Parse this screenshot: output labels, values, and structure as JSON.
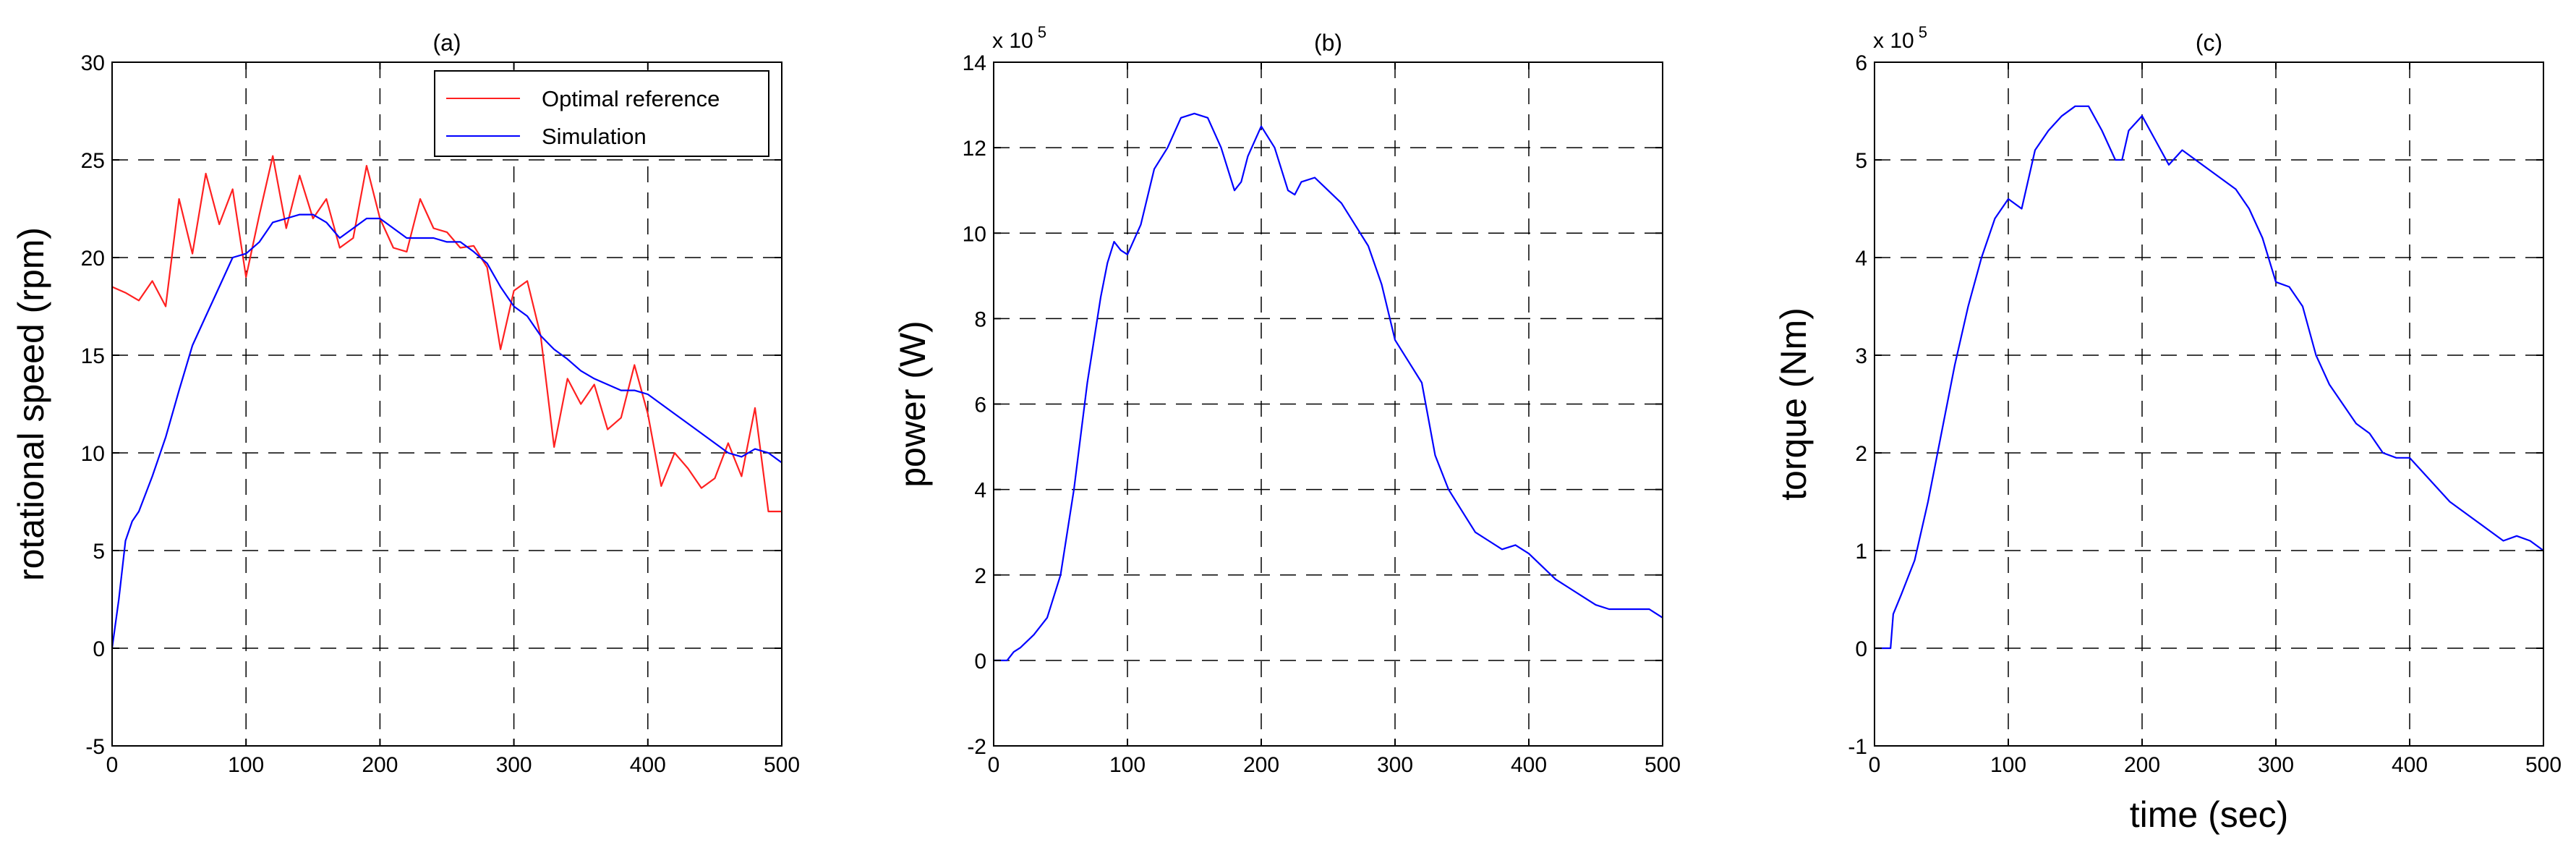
{
  "colors": {
    "reference": "#ff2020",
    "simulation": "#0000ff",
    "grid": "#000000",
    "axes": "#000000"
  },
  "chart_data": [
    {
      "type": "line",
      "title": "(a)",
      "xlabel": "",
      "ylabel": "rotational speed (rpm)",
      "multiplier": "",
      "xlim": [
        0,
        500
      ],
      "ylim": [
        -5,
        30
      ],
      "xticks": [
        0,
        100,
        200,
        300,
        400,
        500
      ],
      "yticks": [
        -5,
        0,
        5,
        10,
        15,
        20,
        25,
        30
      ],
      "grid": true,
      "legend": "top-right",
      "series": [
        {
          "name": "Optimal reference",
          "color": "#ff2020",
          "x": [
            0,
            10,
            20,
            30,
            40,
            50,
            60,
            70,
            80,
            90,
            100,
            110,
            120,
            130,
            140,
            150,
            160,
            170,
            180,
            190,
            200,
            210,
            220,
            230,
            240,
            250,
            260,
            270,
            280,
            290,
            300,
            310,
            320,
            330,
            340,
            350,
            360,
            370,
            380,
            390,
            400,
            410,
            420,
            430,
            440,
            450,
            460,
            470,
            480,
            490,
            500
          ],
          "y": [
            18.5,
            18.2,
            17.8,
            18.8,
            17.5,
            23.0,
            20.2,
            24.3,
            21.7,
            23.5,
            19.0,
            22.2,
            25.2,
            21.5,
            24.2,
            22.0,
            23.0,
            20.5,
            21.0,
            24.7,
            22.0,
            20.5,
            20.3,
            23.0,
            21.5,
            21.3,
            20.5,
            20.6,
            19.5,
            15.3,
            18.3,
            18.8,
            16.0,
            10.3,
            13.8,
            12.5,
            13.5,
            11.2,
            11.8,
            14.5,
            12.0,
            8.3,
            10.0,
            9.2,
            8.2,
            8.7,
            10.5,
            8.8,
            12.3,
            7.0,
            7.0
          ]
        },
        {
          "name": "Simulation",
          "color": "#0000ff",
          "x": [
            0,
            5,
            10,
            15,
            20,
            30,
            40,
            50,
            60,
            70,
            80,
            90,
            100,
            110,
            120,
            130,
            140,
            150,
            160,
            170,
            180,
            190,
            200,
            210,
            220,
            230,
            240,
            250,
            260,
            270,
            280,
            290,
            300,
            310,
            320,
            330,
            340,
            350,
            360,
            370,
            380,
            390,
            400,
            410,
            420,
            430,
            440,
            450,
            460,
            470,
            480,
            490,
            500
          ],
          "y": [
            0.0,
            2.5,
            5.5,
            6.5,
            7.0,
            8.8,
            10.8,
            13.2,
            15.5,
            17.0,
            18.5,
            20.0,
            20.2,
            20.8,
            21.8,
            22.0,
            22.2,
            22.2,
            21.8,
            21.0,
            21.5,
            22.0,
            22.0,
            21.5,
            21.0,
            21.0,
            21.0,
            20.8,
            20.8,
            20.3,
            19.7,
            18.5,
            17.5,
            17.0,
            16.0,
            15.3,
            14.8,
            14.2,
            13.8,
            13.5,
            13.2,
            13.2,
            13.0,
            12.5,
            12.0,
            11.5,
            11.0,
            10.5,
            10.0,
            9.8,
            10.2,
            10.0,
            9.5
          ]
        }
      ]
    },
    {
      "type": "line",
      "title": "(b)",
      "xlabel": "",
      "ylabel": "power (W)",
      "multiplier": "x 10",
      "multiplier_exp": "5",
      "xlim": [
        0,
        500
      ],
      "ylim": [
        -2,
        14
      ],
      "xticks": [
        0,
        100,
        200,
        300,
        400,
        500
      ],
      "yticks": [
        -2,
        0,
        2,
        4,
        6,
        8,
        10,
        12,
        14
      ],
      "grid": true,
      "series": [
        {
          "color": "#0000ff",
          "x": [
            0,
            10,
            15,
            20,
            30,
            40,
            50,
            60,
            70,
            80,
            85,
            90,
            95,
            100,
            110,
            120,
            130,
            140,
            150,
            160,
            170,
            180,
            185,
            190,
            200,
            210,
            220,
            225,
            230,
            240,
            250,
            260,
            270,
            280,
            290,
            300,
            310,
            320,
            330,
            340,
            350,
            360,
            370,
            380,
            390,
            400,
            410,
            420,
            430,
            440,
            450,
            460,
            470,
            480,
            490,
            500
          ],
          "y": [
            0.0,
            0.0,
            0.2,
            0.3,
            0.6,
            1.0,
            2.0,
            4.0,
            6.5,
            8.5,
            9.3,
            9.8,
            9.6,
            9.5,
            10.2,
            11.5,
            12.0,
            12.7,
            12.8,
            12.7,
            12.0,
            11.0,
            11.2,
            11.8,
            12.5,
            12.0,
            11.0,
            10.9,
            11.2,
            11.3,
            11.0,
            10.7,
            10.2,
            9.7,
            8.8,
            7.5,
            7.0,
            6.5,
            4.8,
            4.0,
            3.5,
            3.0,
            2.8,
            2.6,
            2.7,
            2.5,
            2.2,
            1.9,
            1.7,
            1.5,
            1.3,
            1.2,
            1.2,
            1.2,
            1.2,
            1.0
          ]
        }
      ]
    },
    {
      "type": "line",
      "title": "(c)",
      "xlabel": "time (sec)",
      "ylabel": "torque (Nm)",
      "multiplier": "x 10",
      "multiplier_exp": "5",
      "xlim": [
        0,
        500
      ],
      "ylim": [
        -1,
        6
      ],
      "xticks": [
        0,
        100,
        200,
        300,
        400,
        500
      ],
      "yticks": [
        -1,
        0,
        1,
        2,
        3,
        4,
        5,
        6
      ],
      "grid": true,
      "series": [
        {
          "color": "#0000ff",
          "x": [
            0,
            12,
            14,
            20,
            30,
            40,
            50,
            60,
            70,
            80,
            90,
            100,
            110,
            120,
            130,
            140,
            150,
            160,
            170,
            180,
            185,
            190,
            200,
            210,
            220,
            230,
            240,
            250,
            260,
            270,
            280,
            290,
            300,
            310,
            320,
            330,
            340,
            350,
            360,
            370,
            380,
            390,
            400,
            410,
            420,
            430,
            440,
            450,
            460,
            470,
            480,
            490,
            500
          ],
          "y": [
            0.0,
            0.0,
            0.35,
            0.55,
            0.9,
            1.5,
            2.2,
            2.9,
            3.5,
            4.0,
            4.4,
            4.6,
            4.5,
            5.1,
            5.3,
            5.45,
            5.55,
            5.55,
            5.3,
            5.0,
            5.0,
            5.3,
            5.45,
            5.2,
            4.95,
            5.1,
            5.0,
            4.9,
            4.8,
            4.7,
            4.5,
            4.2,
            3.75,
            3.7,
            3.5,
            3.0,
            2.7,
            2.5,
            2.3,
            2.2,
            2.0,
            1.95,
            1.95,
            1.8,
            1.65,
            1.5,
            1.4,
            1.3,
            1.2,
            1.1,
            1.15,
            1.1,
            1.0
          ]
        }
      ]
    }
  ]
}
